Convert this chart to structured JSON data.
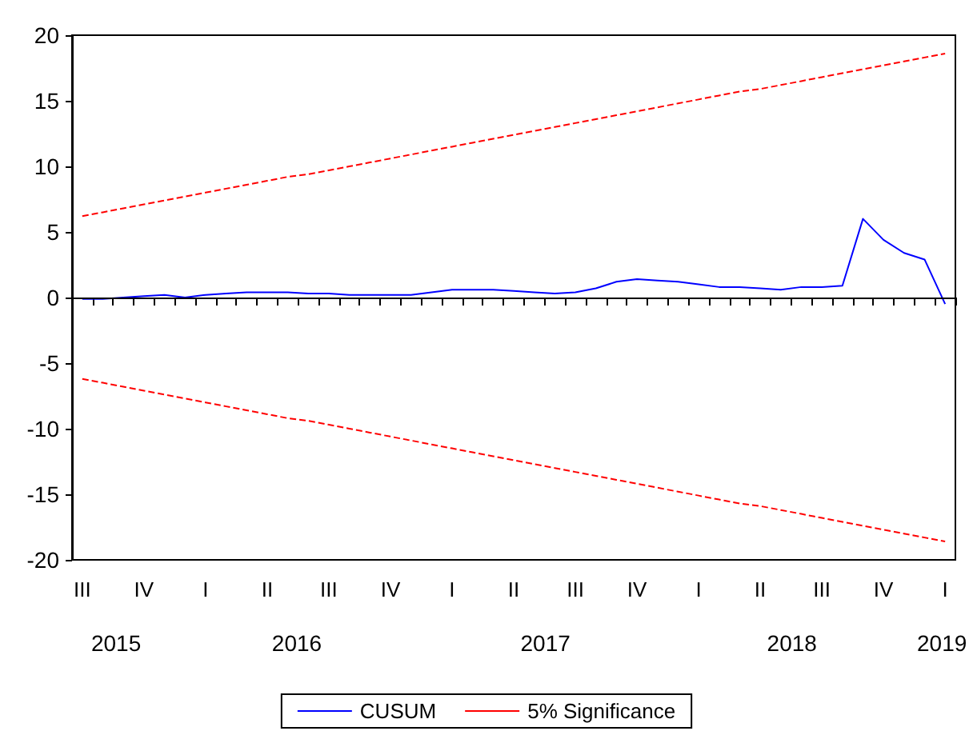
{
  "chart_data": {
    "type": "line",
    "categories": [
      "III",
      null,
      null,
      "IV",
      null,
      null,
      "I",
      null,
      null,
      "II",
      null,
      null,
      "III",
      null,
      null,
      "IV",
      null,
      null,
      "I",
      null,
      null,
      "II",
      null,
      null,
      "III",
      null,
      null,
      "IV",
      null,
      null,
      "I",
      null,
      null,
      "II",
      null,
      null,
      "III",
      null,
      null,
      "IV",
      null,
      null,
      "I"
    ],
    "series": [
      {
        "name": "CUSUM",
        "color": "#0000ff",
        "line_style": "solid",
        "values": [
          -0.1,
          -0.1,
          0.0,
          0.1,
          0.2,
          0.0,
          0.2,
          0.3,
          0.4,
          0.4,
          0.4,
          0.3,
          0.3,
          0.2,
          0.2,
          0.2,
          0.2,
          0.4,
          0.6,
          0.6,
          0.6,
          0.5,
          0.4,
          0.3,
          0.4,
          0.7,
          1.2,
          1.4,
          1.3,
          1.2,
          1.0,
          0.8,
          0.8,
          0.7,
          0.6,
          0.8,
          0.8,
          0.9,
          6.0,
          4.4,
          3.4,
          2.9,
          -0.5
        ]
      },
      {
        "name": "5% Significance",
        "color": "#ff0000",
        "line_style": "dashed",
        "values": [
          6.2,
          6.5,
          6.8,
          7.1,
          7.4,
          7.7,
          8.0,
          8.3,
          8.6,
          8.9,
          9.2,
          9.4,
          9.7,
          10.0,
          10.3,
          10.6,
          10.9,
          11.2,
          11.5,
          11.8,
          12.1,
          12.4,
          12.7,
          13.0,
          13.3,
          13.6,
          13.9,
          14.2,
          14.5,
          14.8,
          15.1,
          15.4,
          15.7,
          15.9,
          16.2,
          16.5,
          16.8,
          17.1,
          17.4,
          17.7,
          18.0,
          18.3,
          18.6
        ]
      },
      {
        "color": "#ff0000",
        "line_style": "dashed",
        "values": [
          -6.2,
          -6.5,
          -6.8,
          -7.1,
          -7.4,
          -7.7,
          -8.0,
          -8.3,
          -8.6,
          -8.9,
          -9.2,
          -9.4,
          -9.7,
          -10.0,
          -10.3,
          -10.6,
          -10.9,
          -11.2,
          -11.5,
          -11.8,
          -12.1,
          -12.4,
          -12.7,
          -13.0,
          -13.3,
          -13.6,
          -13.9,
          -14.2,
          -14.5,
          -14.8,
          -15.1,
          -15.4,
          -15.7,
          -15.9,
          -16.2,
          -16.5,
          -16.8,
          -17.1,
          -17.4,
          -17.7,
          -18.0,
          -18.3,
          -18.6
        ]
      }
    ],
    "ylim": [
      -20,
      20
    ],
    "yticks": [
      -20,
      -15,
      -10,
      -5,
      0,
      5,
      10,
      15,
      20
    ],
    "ref_lines": [
      {
        "axis": "y",
        "value": 0,
        "color": "#000000"
      }
    ],
    "annotations": [
      "2015",
      "2016",
      "2017",
      "2018",
      "2019"
    ],
    "marker": "none",
    "grid": false,
    "legend": "bottom"
  }
}
